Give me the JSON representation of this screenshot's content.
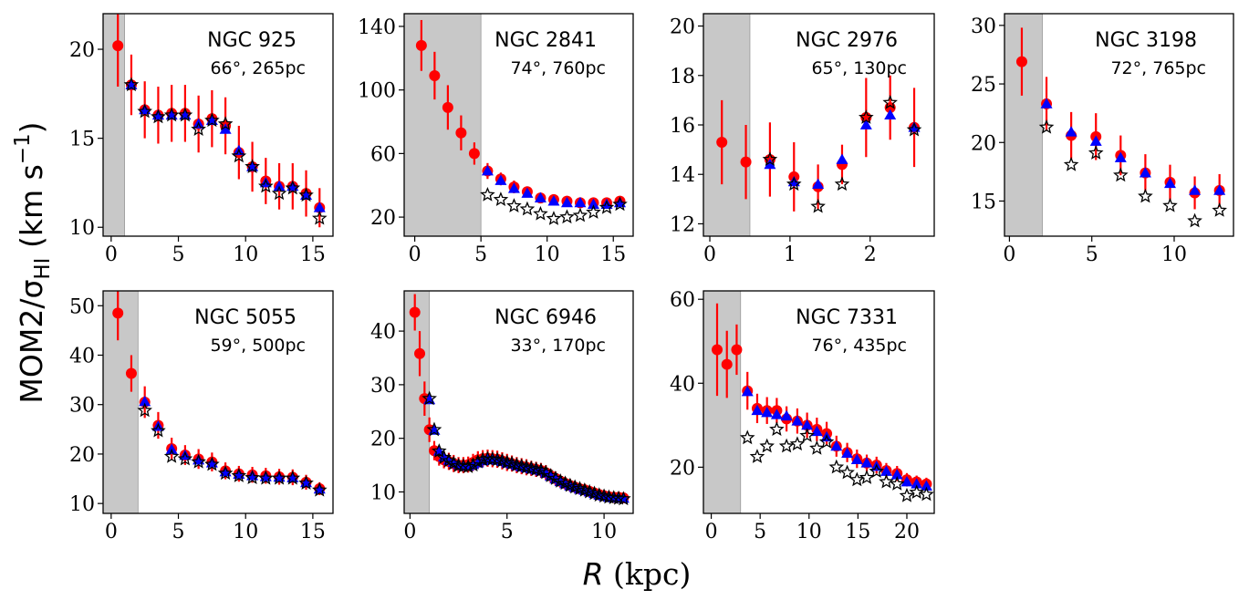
{
  "figure": {
    "ylabel": "MOM2/σ",
    "ylabel_sub": "HI",
    "ylabel_unit": " (km s",
    "ylabel_exp": "−1",
    "ylabel_end": ")",
    "xlabel_var": "R",
    "xlabel_unit": " (kpc)"
  },
  "colors": {
    "red": "#ff0000",
    "blue": "#0000ff",
    "star": "#000000",
    "shade": "#c8c8c8"
  },
  "chart_data": [
    {
      "type": "scatter",
      "name": "NGC 925",
      "subtitle": "66°, 265pc",
      "xlim": [
        -0.6,
        16.5
      ],
      "ylim": [
        9.5,
        22
      ],
      "shade": [
        -0.6,
        1.0
      ],
      "xticks": [
        0,
        5,
        10,
        15
      ],
      "yticks": [
        10,
        15,
        20
      ],
      "red": {
        "x": [
          0.5,
          1.5,
          2.5,
          3.5,
          4.5,
          5.5,
          6.5,
          7.5,
          8.5,
          9.5,
          10.5,
          11.5,
          12.5,
          13.5,
          14.5,
          15.5
        ],
        "y": [
          20.2,
          18.0,
          16.6,
          16.3,
          16.4,
          16.4,
          15.8,
          16.1,
          15.7,
          14.2,
          13.4,
          12.6,
          12.3,
          12.3,
          11.9,
          11.1
        ],
        "err": [
          2.3,
          1.7,
          1.6,
          1.6,
          1.6,
          1.6,
          1.6,
          1.6,
          1.6,
          1.5,
          1.4,
          1.3,
          1.3,
          1.3,
          1.3,
          1.1
        ]
      },
      "blue": {
        "x": [
          1.5,
          2.5,
          3.5,
          4.5,
          5.5,
          6.5,
          7.5,
          8.5,
          9.5,
          10.5,
          11.5,
          12.5,
          13.5,
          14.5,
          15.5
        ],
        "y": [
          18.0,
          16.6,
          16.3,
          16.3,
          16.3,
          15.8,
          16.0,
          15.5,
          14.3,
          13.4,
          12.5,
          12.3,
          12.3,
          11.8,
          11.1
        ]
      },
      "star": {
        "x": [
          1.5,
          2.5,
          3.5,
          4.5,
          5.5,
          6.5,
          7.5,
          8.5,
          9.5,
          10.5,
          11.5,
          12.5,
          13.5,
          14.5,
          15.5
        ],
        "y": [
          18.0,
          16.5,
          16.2,
          16.3,
          16.3,
          15.5,
          16.0,
          15.8,
          14.0,
          13.4,
          12.3,
          11.9,
          12.2,
          11.8,
          10.5
        ]
      }
    },
    {
      "type": "scatter",
      "name": "NGC 2841",
      "subtitle": "74°, 760pc",
      "xlim": [
        -0.8,
        16.5
      ],
      "ylim": [
        8,
        148
      ],
      "shade": [
        -0.8,
        5.0
      ],
      "xticks": [
        0,
        5,
        10,
        15
      ],
      "yticks": [
        20,
        60,
        100,
        140
      ],
      "red": {
        "x": [
          0.5,
          1.5,
          2.5,
          3.5,
          4.5,
          5.5,
          6.5,
          7.5,
          8.5,
          9.5,
          10.5,
          11.5,
          12.5,
          13.5,
          14.5,
          15.5
        ],
        "y": [
          128,
          109,
          89,
          73,
          60,
          49,
          44,
          39,
          36,
          32,
          31,
          30,
          29,
          29,
          29,
          30
        ],
        "err": [
          16,
          15,
          14,
          11,
          7,
          5,
          4,
          4,
          3,
          3,
          3,
          3,
          3,
          3,
          3,
          3
        ]
      },
      "blue": {
        "x": [
          5.5,
          6.5,
          7.5,
          8.5,
          9.5,
          10.5,
          11.5,
          12.5,
          13.5,
          14.5,
          15.5
        ],
        "y": [
          49,
          43,
          38,
          35,
          32,
          30,
          29,
          29,
          28,
          28,
          29
        ]
      },
      "star": {
        "x": [
          5.5,
          6.5,
          7.5,
          8.5,
          9.5,
          10.5,
          11.5,
          12.5,
          13.5,
          14.5,
          15.5
        ],
        "y": [
          34,
          31,
          27,
          25,
          22,
          19,
          20,
          21,
          23,
          26,
          28
        ]
      }
    },
    {
      "type": "scatter",
      "name": "NGC 2976",
      "subtitle": "65°, 130pc",
      "xlim": [
        -0.08,
        2.8
      ],
      "ylim": [
        11.5,
        20.5
      ],
      "shade": [
        -0.08,
        0.5
      ],
      "xticks": [
        0,
        1,
        2
      ],
      "yticks": [
        12,
        14,
        16,
        18,
        20
      ],
      "red": {
        "x": [
          0.15,
          0.45,
          0.75,
          1.05,
          1.35,
          1.65,
          1.95,
          2.25,
          2.55
        ],
        "y": [
          15.3,
          14.5,
          14.6,
          13.9,
          13.5,
          14.4,
          16.3,
          16.7,
          15.9
        ],
        "err": [
          1.7,
          1.5,
          1.5,
          1.4,
          0.9,
          0.8,
          1.6,
          1.3,
          1.6
        ]
      },
      "blue": {
        "x": [
          0.75,
          1.05,
          1.35,
          1.65,
          1.95,
          2.25,
          2.55
        ],
        "y": [
          14.4,
          13.7,
          13.6,
          14.6,
          16.0,
          16.4,
          15.9
        ]
      },
      "star": {
        "x": [
          0.75,
          1.05,
          1.35,
          1.65,
          1.95,
          2.25,
          2.55
        ],
        "y": [
          14.6,
          13.6,
          12.7,
          13.6,
          16.3,
          16.9,
          15.8
        ]
      }
    },
    {
      "type": "scatter",
      "name": "NGC 3198",
      "subtitle": "72°, 765pc",
      "xlim": [
        -0.3,
        13.6
      ],
      "ylim": [
        12,
        31
      ],
      "shade": [
        -0.3,
        2.0
      ],
      "xticks": [
        0,
        5,
        10
      ],
      "yticks": [
        15,
        20,
        25,
        30
      ],
      "red": {
        "x": [
          0.75,
          2.25,
          3.75,
          5.25,
          6.75,
          8.25,
          9.75,
          11.25,
          12.75
        ],
        "y": [
          26.9,
          23.3,
          20.6,
          20.5,
          18.9,
          17.4,
          16.6,
          15.7,
          15.9
        ],
        "err": [
          2.9,
          2.3,
          2.0,
          2.0,
          1.7,
          1.6,
          1.5,
          1.4,
          1.4
        ]
      },
      "blue": {
        "x": [
          2.25,
          3.75,
          5.25,
          6.75,
          8.25,
          9.75,
          11.25,
          12.75
        ],
        "y": [
          23.3,
          20.9,
          20.1,
          18.7,
          17.4,
          16.5,
          15.9,
          15.9
        ]
      },
      "star": {
        "x": [
          2.25,
          3.75,
          5.25,
          6.75,
          8.25,
          9.75,
          11.25,
          12.75
        ],
        "y": [
          21.3,
          18.1,
          19.1,
          17.2,
          15.4,
          14.6,
          13.3,
          14.2
        ]
      }
    },
    {
      "type": "scatter",
      "name": "NGC 5055",
      "subtitle": "59°, 500pc",
      "xlim": [
        -0.6,
        16.5
      ],
      "ylim": [
        8,
        53
      ],
      "shade": [
        -0.6,
        2.0
      ],
      "xticks": [
        0,
        5,
        10,
        15
      ],
      "yticks": [
        10,
        20,
        30,
        40,
        50
      ],
      "red": {
        "x": [
          0.5,
          1.5,
          2.5,
          3.5,
          4.5,
          5.5,
          6.5,
          7.5,
          8.5,
          9.5,
          10.5,
          11.5,
          12.5,
          13.5,
          14.5,
          15.5
        ],
        "y": [
          48.5,
          36.3,
          30.5,
          25.8,
          21.1,
          19.8,
          19.0,
          18.4,
          16.6,
          16.0,
          15.8,
          15.6,
          15.4,
          15.3,
          14.3,
          13.0
        ],
        "err": [
          5.5,
          3.7,
          3.2,
          2.7,
          2.2,
          2.0,
          2.0,
          1.9,
          1.7,
          1.6,
          1.6,
          1.6,
          1.6,
          1.6,
          1.5,
          1.3
        ]
      },
      "blue": {
        "x": [
          2.5,
          3.5,
          4.5,
          5.5,
          6.5,
          7.5,
          8.5,
          9.5,
          10.5,
          11.5,
          12.5,
          13.5,
          14.5,
          15.5
        ],
        "y": [
          30.6,
          25.6,
          20.9,
          19.7,
          18.8,
          18.2,
          16.4,
          15.9,
          15.6,
          15.4,
          15.3,
          15.2,
          14.2,
          12.9
        ]
      },
      "star": {
        "x": [
          2.5,
          3.5,
          4.5,
          5.5,
          6.5,
          7.5,
          8.5,
          9.5,
          10.5,
          11.5,
          12.5,
          13.5,
          14.5,
          15.5
        ],
        "y": [
          28.8,
          24.7,
          19.5,
          19.0,
          18.4,
          17.9,
          16.1,
          15.6,
          15.2,
          15.1,
          15.1,
          15.1,
          14.1,
          12.7
        ]
      }
    },
    {
      "type": "scatter",
      "name": "NGC 6946",
      "subtitle": "33°, 170pc",
      "xlim": [
        -0.3,
        11.5
      ],
      "ylim": [
        6,
        47.5
      ],
      "shade": [
        -0.3,
        1.0
      ],
      "xticks": [
        0,
        5,
        10
      ],
      "yticks": [
        10,
        20,
        30,
        40
      ],
      "red": {
        "x": [
          0.25,
          0.5,
          0.75,
          1.0,
          1.25,
          1.5,
          1.75,
          2.0,
          2.25,
          2.5,
          2.75,
          3.0,
          3.25,
          3.5,
          3.75,
          4.0,
          4.25,
          4.5,
          4.75,
          5.0,
          5.25,
          5.5,
          5.75,
          6.0,
          6.25,
          6.5,
          6.75,
          7.0,
          7.25,
          7.5,
          7.75,
          8.0,
          8.25,
          8.5,
          8.75,
          9.0,
          9.25,
          9.5,
          9.75,
          10.0,
          10.25,
          10.5,
          10.75,
          11.0
        ],
        "y": [
          43.5,
          35.8,
          27.4,
          21.6,
          17.7,
          16.6,
          16.0,
          15.7,
          15.3,
          15.0,
          15.0,
          15.1,
          15.5,
          16.0,
          16.2,
          16.3,
          16.2,
          16.1,
          15.8,
          15.5,
          15.3,
          15.0,
          14.8,
          14.6,
          14.4,
          14.2,
          14.0,
          13.6,
          13.0,
          12.5,
          12.0,
          11.6,
          11.2,
          10.9,
          10.6,
          10.4,
          10.1,
          9.8,
          9.5,
          9.3,
          9.1,
          9.0,
          9.0,
          8.9
        ],
        "err": [
          3.4,
          4.2,
          3.2,
          2.3,
          1.8,
          1.7,
          1.6,
          1.6,
          1.6,
          1.5,
          1.5,
          1.5,
          1.6,
          1.6,
          1.6,
          1.6,
          1.6,
          1.6,
          1.6,
          1.6,
          1.5,
          1.5,
          1.5,
          1.5,
          1.4,
          1.4,
          1.4,
          1.4,
          1.3,
          1.3,
          1.2,
          1.2,
          1.2,
          1.1,
          1.1,
          1.1,
          1.0,
          1.0,
          1.0,
          1.0,
          0.9,
          0.9,
          0.9,
          0.9
        ]
      },
      "blue": {
        "x": [
          1.0,
          1.25,
          1.5,
          1.75,
          2.0,
          2.25,
          2.5,
          2.75,
          3.0,
          3.25,
          3.5,
          3.75,
          4.0,
          4.25,
          4.5,
          4.75,
          5.0,
          5.25,
          5.5,
          5.75,
          6.0,
          6.25,
          6.5,
          6.75,
          7.0,
          7.25,
          7.5,
          7.75,
          8.0,
          8.25,
          8.5,
          8.75,
          9.0,
          9.25,
          9.5,
          9.75,
          10.0,
          10.25,
          10.5,
          10.75,
          11.0
        ],
        "y": [
          27.2,
          21.5,
          17.6,
          16.5,
          15.9,
          15.5,
          15.1,
          14.9,
          14.8,
          15.1,
          15.4,
          15.8,
          16.0,
          16.0,
          15.9,
          15.7,
          15.4,
          15.2,
          14.9,
          14.7,
          14.5,
          14.3,
          14.1,
          13.9,
          13.5,
          12.9,
          12.4,
          11.9,
          11.5,
          11.1,
          10.8,
          10.5,
          10.3,
          10.0,
          9.7,
          9.4,
          9.2,
          9.0,
          8.9,
          8.9,
          8.8
        ]
      },
      "star": {
        "x": [
          1.0,
          1.25,
          1.5,
          1.75,
          2.0,
          2.25,
          2.5,
          2.75,
          3.0,
          3.25,
          3.5,
          3.75,
          4.0,
          4.25,
          4.5,
          4.75,
          5.0,
          5.25,
          5.5,
          5.75,
          6.0,
          6.25,
          6.5,
          6.75,
          7.0,
          7.25,
          7.5,
          7.75,
          8.0,
          8.25,
          8.5,
          8.75,
          9.0,
          9.25,
          9.5,
          9.75,
          10.0,
          10.25,
          10.5,
          10.75,
          11.0
        ],
        "y": [
          27.4,
          21.6,
          17.6,
          16.4,
          15.8,
          15.3,
          14.9,
          14.8,
          14.7,
          15.0,
          15.6,
          16.0,
          16.2,
          16.1,
          16.0,
          15.8,
          15.5,
          15.3,
          15.0,
          14.8,
          14.6,
          14.4,
          14.2,
          14.0,
          13.6,
          13.0,
          12.5,
          12.0,
          11.6,
          11.2,
          10.9,
          10.6,
          10.3,
          10.0,
          9.7,
          9.4,
          9.2,
          9.0,
          8.9,
          8.8,
          8.7
        ]
      }
    },
    {
      "type": "scatter",
      "name": "NGC 7331",
      "subtitle": "76°, 435pc",
      "xlim": [
        -0.8,
        22.8
      ],
      "ylim": [
        9,
        62
      ],
      "shade": [
        -0.8,
        3.0
      ],
      "xticks": [
        0,
        5,
        10,
        15,
        20
      ],
      "yticks": [
        20,
        40,
        60
      ],
      "red": {
        "x": [
          0.6,
          1.6,
          2.6,
          3.7,
          4.7,
          5.7,
          6.7,
          7.7,
          8.8,
          9.8,
          10.8,
          11.8,
          12.8,
          13.9,
          14.9,
          15.9,
          16.9,
          17.9,
          19.0,
          20.0,
          21.0,
          22.0
        ],
        "y": [
          48,
          44.5,
          48,
          38.2,
          34,
          33.5,
          33.5,
          31.5,
          31,
          30,
          29,
          28,
          25,
          23.5,
          22,
          21,
          20.5,
          19.2,
          18.5,
          17,
          16.5,
          16
        ],
        "err": [
          11,
          8,
          6,
          4.5,
          3.5,
          3.2,
          3.0,
          3.0,
          3.0,
          3.0,
          2.8,
          2.8,
          2.5,
          2.3,
          2.2,
          2.0,
          2.0,
          1.8,
          1.8,
          1.6,
          1.5,
          1.5
        ]
      },
      "blue": {
        "x": [
          3.7,
          4.7,
          5.7,
          6.7,
          7.7,
          8.8,
          9.8,
          10.8,
          11.8,
          12.8,
          13.9,
          14.9,
          15.9,
          16.9,
          17.9,
          19.0,
          20.0,
          21.0,
          22.0
        ],
        "y": [
          38,
          33.5,
          33,
          32.5,
          32.2,
          31,
          30,
          28.5,
          27.2,
          25,
          23.3,
          21.8,
          21,
          20.2,
          19,
          18.2,
          16.5,
          16,
          15.5
        ]
      },
      "star": {
        "x": [
          3.7,
          4.7,
          5.7,
          6.7,
          7.7,
          8.8,
          9.8,
          10.8,
          11.8,
          12.8,
          13.9,
          14.9,
          15.9,
          16.9,
          17.9,
          19.0,
          20.0,
          21.0,
          22.0
        ],
        "y": [
          27,
          22.5,
          25,
          29,
          25,
          25.5,
          27.5,
          24.5,
          26,
          20,
          18.7,
          17,
          17.5,
          19,
          16.5,
          16,
          13.2,
          14,
          13.5
        ]
      }
    }
  ]
}
